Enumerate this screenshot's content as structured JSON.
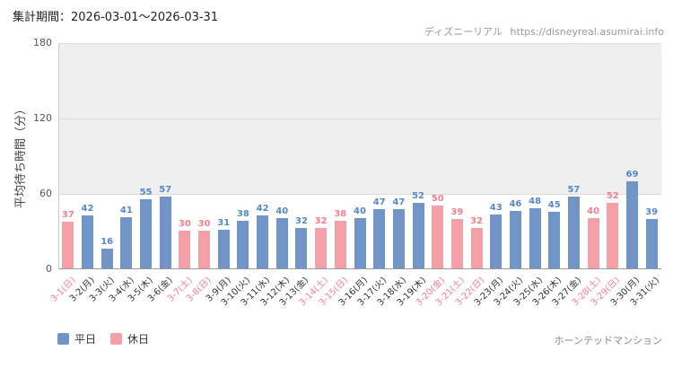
{
  "header": {
    "period": "集計期間：2026-03-01～2026-03-31",
    "brand": "ディズニーリアル",
    "url": "https://disneyreal.asumirai.info"
  },
  "chart_data": {
    "type": "bar",
    "title": "",
    "ylabel": "平均待ち時間（分）",
    "xlabel": "",
    "ylim": [
      0,
      180
    ],
    "yticks": [
      0,
      60,
      120,
      180
    ],
    "grid": true,
    "legend_position": "bottom-left",
    "categories": [
      "3-1(日)",
      "3-2(月)",
      "3-3(火)",
      "3-4(水)",
      "3-5(木)",
      "3-6(金)",
      "3-7(土)",
      "3-8(日)",
      "3-9(月)",
      "3-10(火)",
      "3-11(水)",
      "3-12(木)",
      "3-13(金)",
      "3-14(土)",
      "3-15(日)",
      "3-16(月)",
      "3-17(火)",
      "3-18(水)",
      "3-19(木)",
      "3-20(金)",
      "3-21(土)",
      "3-22(日)",
      "3-23(月)",
      "3-24(火)",
      "3-25(水)",
      "3-26(木)",
      "3-27(金)",
      "3-28(土)",
      "3-29(日)",
      "3-30(月)",
      "3-31(火)"
    ],
    "values": [
      37,
      42,
      16,
      41,
      55,
      57,
      30,
      30,
      31,
      38,
      42,
      40,
      32,
      32,
      38,
      40,
      47,
      47,
      52,
      50,
      39,
      32,
      43,
      46,
      48,
      45,
      57,
      40,
      52,
      69,
      39
    ],
    "day_types": [
      "holiday",
      "weekday",
      "weekday",
      "weekday",
      "weekday",
      "weekday",
      "holiday",
      "holiday",
      "weekday",
      "weekday",
      "weekday",
      "weekday",
      "weekday",
      "holiday",
      "holiday",
      "weekday",
      "weekday",
      "weekday",
      "weekday",
      "holiday",
      "holiday",
      "holiday",
      "weekday",
      "weekday",
      "weekday",
      "weekday",
      "weekday",
      "holiday",
      "holiday",
      "weekday",
      "weekday"
    ],
    "legend": [
      {
        "label": "平日",
        "type": "weekday"
      },
      {
        "label": "休日",
        "type": "holiday"
      }
    ],
    "colors": {
      "weekday_bar": "#7195c6",
      "holiday_bar": "#f5a0a6",
      "weekday_text": "#5588cc",
      "holiday_text": "#f0808e",
      "axis_text": "#444444",
      "grid_band": "#efefef",
      "gridline": "#dcdcdc"
    }
  },
  "footer": {
    "attraction": "ホーンテッドマンション"
  }
}
